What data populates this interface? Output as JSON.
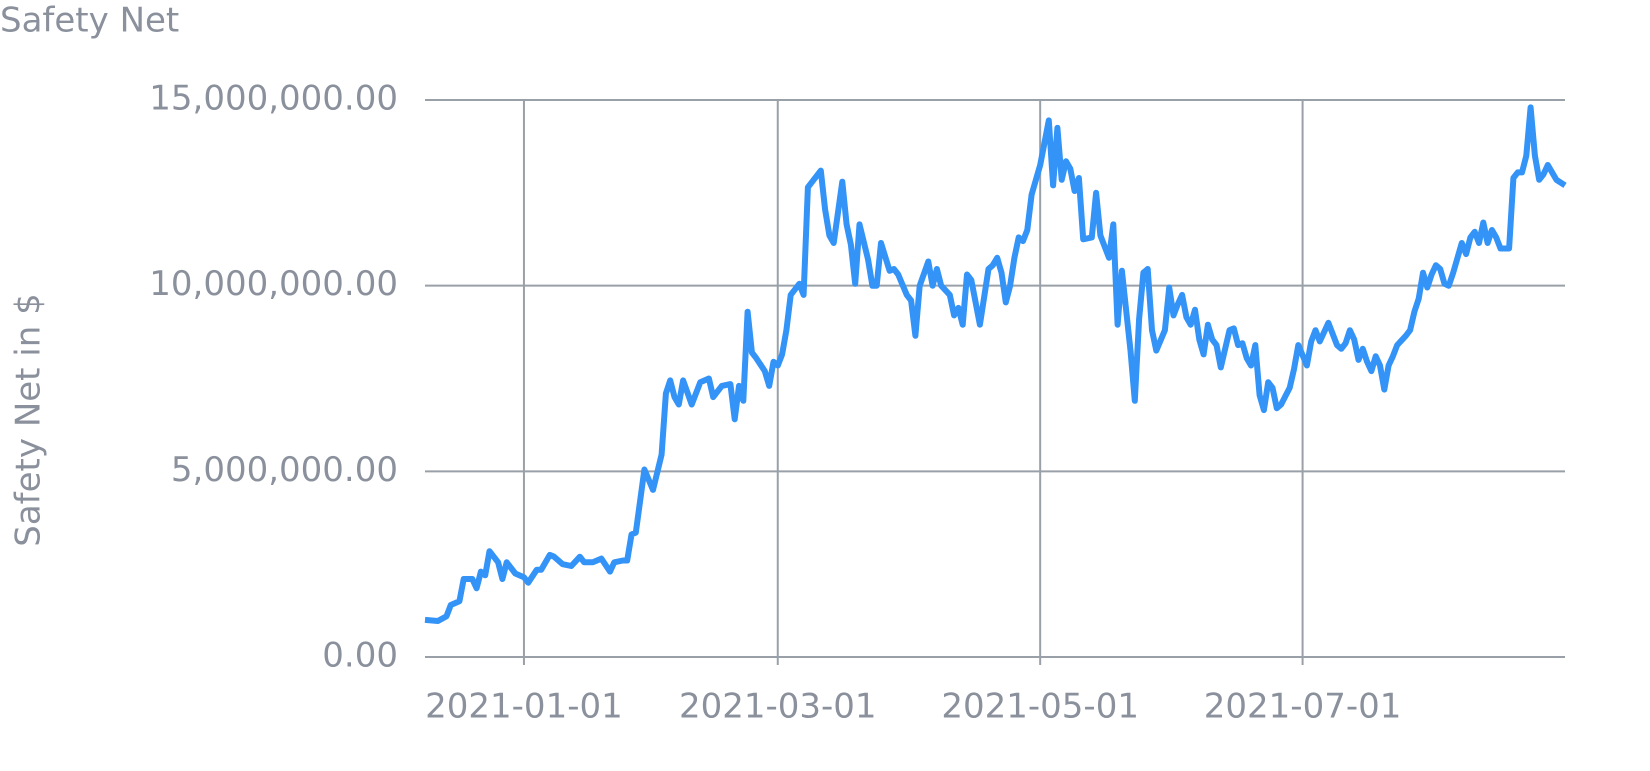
{
  "chart_data": {
    "type": "line",
    "title": "Safety Net",
    "y_label": "Safety Net in $",
    "color": "#3393f7",
    "grid": true,
    "xlim": [
      "2020-12-09",
      "2021-08-31"
    ],
    "xticks": [
      "2021-01-01",
      "2021-03-01",
      "2021-05-01",
      "2021-07-01"
    ],
    "ylim": [
      0,
      15000000
    ],
    "yticks": [
      {
        "value": 0,
        "label": "0.00"
      },
      {
        "value": 5000000,
        "label": "5,000,000.00"
      },
      {
        "value": 10000000,
        "label": "10,000,000.00"
      },
      {
        "value": 15000000,
        "label": "15,000,000.00"
      }
    ],
    "x": [
      "2020-12-09",
      "2020-12-12",
      "2020-12-14",
      "2020-12-15",
      "2020-12-17",
      "2020-12-18",
      "2020-12-20",
      "2020-12-21",
      "2020-12-22",
      "2020-12-23",
      "2020-12-24",
      "2020-12-26",
      "2020-12-27",
      "2020-12-28",
      "2020-12-30",
      "2021-01-01",
      "2021-01-02",
      "2021-01-04",
      "2021-01-05",
      "2021-01-07",
      "2021-01-08",
      "2021-01-10",
      "2021-01-12",
      "2021-01-14",
      "2021-01-15",
      "2021-01-17",
      "2021-01-19",
      "2021-01-21",
      "2021-01-22",
      "2021-01-24",
      "2021-01-25",
      "2021-01-26",
      "2021-01-27",
      "2021-01-29",
      "2021-01-31",
      "2021-02-02",
      "2021-02-03",
      "2021-02-04",
      "2021-02-05",
      "2021-02-06",
      "2021-02-07",
      "2021-02-09",
      "2021-02-11",
      "2021-02-13",
      "2021-02-14",
      "2021-02-16",
      "2021-02-18",
      "2021-02-19",
      "2021-02-20",
      "2021-02-21",
      "2021-02-22",
      "2021-02-23",
      "2021-02-24",
      "2021-02-26",
      "2021-02-27",
      "2021-02-28",
      "2021-03-01",
      "2021-03-02",
      "2021-03-03",
      "2021-03-04",
      "2021-03-06",
      "2021-03-07",
      "2021-03-08",
      "2021-03-11",
      "2021-03-12",
      "2021-03-13",
      "2021-03-14",
      "2021-03-16",
      "2021-03-17",
      "2021-03-18",
      "2021-03-19",
      "2021-03-20",
      "2021-03-22",
      "2021-03-23",
      "2021-03-24",
      "2021-03-25",
      "2021-03-27",
      "2021-03-28",
      "2021-03-29",
      "2021-03-31",
      "2021-04-01",
      "2021-04-02",
      "2021-04-03",
      "2021-04-05",
      "2021-04-06",
      "2021-04-07",
      "2021-04-08",
      "2021-04-10",
      "2021-04-11",
      "2021-04-12",
      "2021-04-13",
      "2021-04-14",
      "2021-04-15",
      "2021-04-17",
      "2021-04-19",
      "2021-04-20",
      "2021-04-21",
      "2021-04-22",
      "2021-04-23",
      "2021-04-24",
      "2021-04-25",
      "2021-04-26",
      "2021-04-27",
      "2021-04-28",
      "2021-04-29",
      "2021-05-01",
      "2021-05-03",
      "2021-05-04",
      "2021-05-05",
      "2021-05-06",
      "2021-05-07",
      "2021-05-08",
      "2021-05-09",
      "2021-05-10",
      "2021-05-11",
      "2021-05-13",
      "2021-05-14",
      "2021-05-15",
      "2021-05-17",
      "2021-05-18",
      "2021-05-19",
      "2021-05-20",
      "2021-05-22",
      "2021-05-23",
      "2021-05-24",
      "2021-05-25",
      "2021-05-26",
      "2021-05-27",
      "2021-05-28",
      "2021-05-30",
      "2021-05-31",
      "2021-06-01",
      "2021-06-02",
      "2021-06-03",
      "2021-06-04",
      "2021-06-05",
      "2021-06-06",
      "2021-06-07",
      "2021-06-08",
      "2021-06-09",
      "2021-06-10",
      "2021-06-11",
      "2021-06-12",
      "2021-06-14",
      "2021-06-15",
      "2021-06-16",
      "2021-06-17",
      "2021-06-18",
      "2021-06-19",
      "2021-06-20",
      "2021-06-21",
      "2021-06-22",
      "2021-06-23",
      "2021-06-24",
      "2021-06-25",
      "2021-06-26",
      "2021-06-28",
      "2021-06-29",
      "2021-06-30",
      "2021-07-02",
      "2021-07-03",
      "2021-07-04",
      "2021-07-05",
      "2021-07-06",
      "2021-07-07",
      "2021-07-09",
      "2021-07-10",
      "2021-07-11",
      "2021-07-12",
      "2021-07-13",
      "2021-07-14",
      "2021-07-15",
      "2021-07-16",
      "2021-07-17",
      "2021-07-18",
      "2021-07-19",
      "2021-07-20",
      "2021-07-21",
      "2021-07-22",
      "2021-07-23",
      "2021-07-25",
      "2021-07-26",
      "2021-07-27",
      "2021-07-28",
      "2021-07-29",
      "2021-07-30",
      "2021-07-31",
      "2021-08-01",
      "2021-08-02",
      "2021-08-03",
      "2021-08-04",
      "2021-08-05",
      "2021-08-06",
      "2021-08-07",
      "2021-08-08",
      "2021-08-09",
      "2021-08-10",
      "2021-08-11",
      "2021-08-12",
      "2021-08-13",
      "2021-08-14",
      "2021-08-15",
      "2021-08-16",
      "2021-08-18",
      "2021-08-19",
      "2021-08-20",
      "2021-08-21",
      "2021-08-22",
      "2021-08-23",
      "2021-08-24",
      "2021-08-25",
      "2021-08-26",
      "2021-08-27",
      "2021-08-28",
      "2021-08-29",
      "2021-08-31"
    ],
    "values": [
      1000000,
      970000,
      1100000,
      1400000,
      1500000,
      2100000,
      2100000,
      1850000,
      2300000,
      2200000,
      2850000,
      2550000,
      2100000,
      2550000,
      2250000,
      2150000,
      2000000,
      2350000,
      2350000,
      2750000,
      2700000,
      2500000,
      2450000,
      2700000,
      2550000,
      2550000,
      2650000,
      2300000,
      2550000,
      2600000,
      2600000,
      3300000,
      3350000,
      5050000,
      4500000,
      5450000,
      7100000,
      7450000,
      7000000,
      6800000,
      7450000,
      6800000,
      7400000,
      7500000,
      7000000,
      7300000,
      7350000,
      6400000,
      7300000,
      6900000,
      9300000,
      8200000,
      8050000,
      7700000,
      7300000,
      7950000,
      7850000,
      8150000,
      8800000,
      9750000,
      10050000,
      9750000,
      12650000,
      13100000,
      12050000,
      11350000,
      11150000,
      12800000,
      11650000,
      11100000,
      10050000,
      11650000,
      10700000,
      10000000,
      10000000,
      11150000,
      10400000,
      10450000,
      10300000,
      9750000,
      9600000,
      8650000,
      10000000,
      10650000,
      10000000,
      10450000,
      10000000,
      9750000,
      9200000,
      9400000,
      8950000,
      10300000,
      10150000,
      8950000,
      10450000,
      10550000,
      10750000,
      10350000,
      9550000,
      10000000,
      10750000,
      11300000,
      11200000,
      11500000,
      12450000,
      13250000,
      14450000,
      12700000,
      14250000,
      12850000,
      13350000,
      13150000,
      12550000,
      12900000,
      11250000,
      11300000,
      12500000,
      11350000,
      10750000,
      11650000,
      8950000,
      10400000,
      8250000,
      6900000,
      9100000,
      10350000,
      10450000,
      8800000,
      8250000,
      8800000,
      9950000,
      9200000,
      9500000,
      9750000,
      9150000,
      8950000,
      9350000,
      8550000,
      8150000,
      8950000,
      8550000,
      8400000,
      7800000,
      8800000,
      8850000,
      8400000,
      8450000,
      8050000,
      7850000,
      8400000,
      7050000,
      6650000,
      7400000,
      7250000,
      6700000,
      6800000,
      7250000,
      7750000,
      8400000,
      7850000,
      8500000,
      8800000,
      8500000,
      8750000,
      9000000,
      8400000,
      8300000,
      8450000,
      8800000,
      8550000,
      8000000,
      8300000,
      7950000,
      7700000,
      8100000,
      7850000,
      7200000,
      7850000,
      8100000,
      8400000,
      8650000,
      8800000,
      9300000,
      9650000,
      10350000,
      9950000,
      10300000,
      10550000,
      10450000,
      10050000,
      10000000,
      10350000,
      10750000,
      11150000,
      10850000,
      11300000,
      11450000,
      11150000,
      11700000,
      11150000,
      11500000,
      11300000,
      11000000,
      11000000,
      12900000,
      13050000,
      13050000,
      13500000,
      14800000,
      13500000,
      12850000,
      13000000,
      13250000,
      13050000,
      12850000,
      12700000
    ]
  }
}
